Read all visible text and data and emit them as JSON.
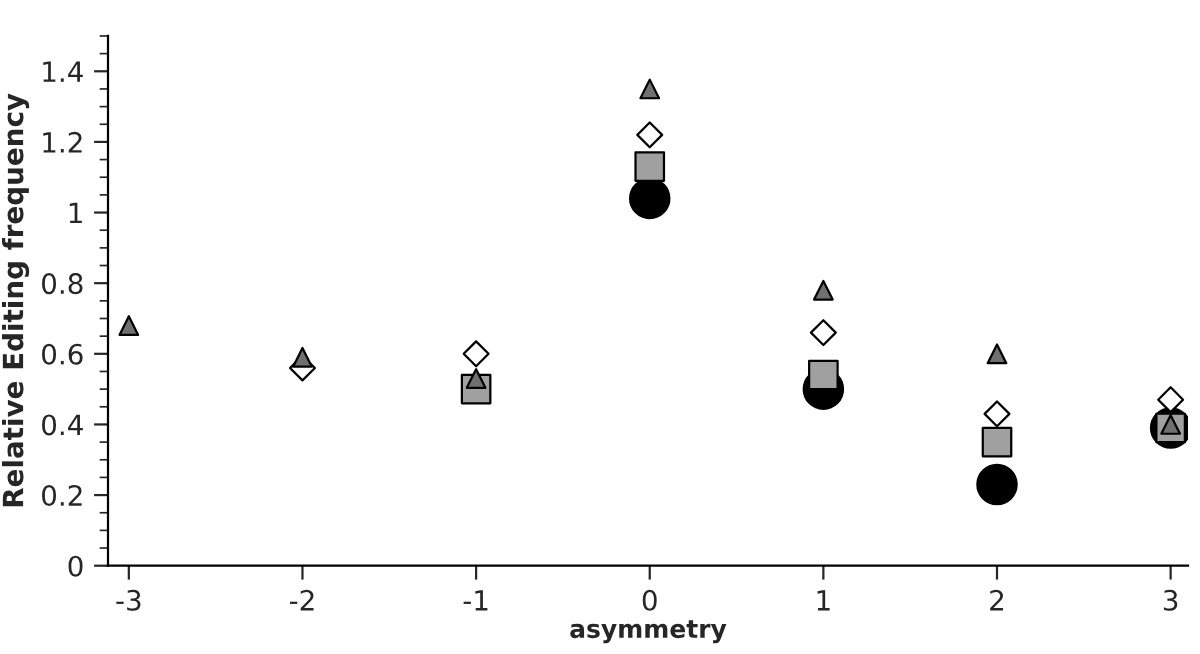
{
  "chart_data": {
    "type": "scatter",
    "xlabel": "asymmetry",
    "ylabel": "Relative Editing frequency",
    "xlim": [
      -3.12,
      3.1
    ],
    "ylim": [
      0,
      1.5
    ],
    "xticks": [
      -3,
      -2,
      -1,
      0,
      1,
      2,
      3
    ],
    "yticks": [
      0,
      0.2,
      0.4,
      0.6,
      0.8,
      1,
      1.2,
      1.4
    ],
    "grid": false,
    "series": [
      {
        "color": "#000000",
        "marker": "circle",
        "x": [
          0,
          1,
          2,
          3
        ],
        "values": [
          1.04,
          0.5,
          0.23,
          0.39
        ]
      },
      {
        "color": "#a0a0a0",
        "marker": "square",
        "x": [
          -1,
          0,
          1,
          2,
          3
        ],
        "values": [
          0.5,
          1.13,
          0.54,
          0.35,
          0.39
        ]
      },
      {
        "color": "#ffffff",
        "marker": "diamond",
        "x": [
          -2,
          -1,
          0,
          1,
          2,
          3
        ],
        "values": [
          0.56,
          0.6,
          1.22,
          0.66,
          0.43,
          0.47
        ]
      },
      {
        "color": "#707070",
        "marker": "triangle",
        "x": [
          -3,
          -2,
          -1,
          0,
          1,
          2,
          3
        ],
        "values": [
          0.68,
          0.59,
          0.53,
          1.35,
          0.78,
          0.6,
          0.4
        ]
      }
    ]
  }
}
